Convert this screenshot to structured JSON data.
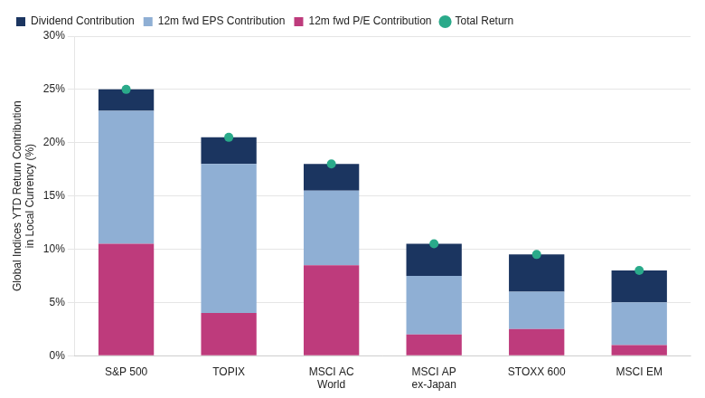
{
  "chart_data": {
    "type": "bar",
    "stacked": true,
    "categories": [
      "S&P 500",
      "TOPIX",
      "MSCI AC\nWorld",
      "MSCI AP\nex-Japan",
      "STOXX 600",
      "MSCI EM"
    ],
    "series": [
      {
        "name": "12m fwd P/E Contribution",
        "type": "bar",
        "color": "#be3b7c",
        "values": [
          10.5,
          4.0,
          8.5,
          2.0,
          2.5,
          1.0
        ]
      },
      {
        "name": "12m fwd EPS Contribution",
        "type": "bar",
        "color": "#8fafd4",
        "values": [
          12.5,
          14.0,
          7.0,
          5.5,
          3.5,
          4.0
        ]
      },
      {
        "name": "Dividend Contribution",
        "type": "bar",
        "color": "#1b3560",
        "values": [
          2.0,
          2.5,
          2.5,
          3.0,
          3.5,
          3.0
        ]
      },
      {
        "name": "Total Return",
        "type": "line",
        "marker": "circle",
        "line_style": "none",
        "color": "#2aaa8a",
        "values": [
          25.0,
          20.5,
          18.0,
          10.5,
          9.5,
          8.0
        ]
      }
    ],
    "y_label": "Global Indices YTD Return Contribution\nin Local Currency (%)",
    "ylim": [
      0,
      30
    ],
    "yticks": [
      {
        "value": 0,
        "label": "0%"
      },
      {
        "value": 5,
        "label": "5%"
      },
      {
        "value": 10,
        "label": "10%"
      },
      {
        "value": 15,
        "label": "15%"
      },
      {
        "value": 20,
        "label": "20%"
      },
      {
        "value": 25,
        "label": "25%"
      },
      {
        "value": 30,
        "label": "30%"
      }
    ],
    "grid": true,
    "legend": "upper left"
  }
}
